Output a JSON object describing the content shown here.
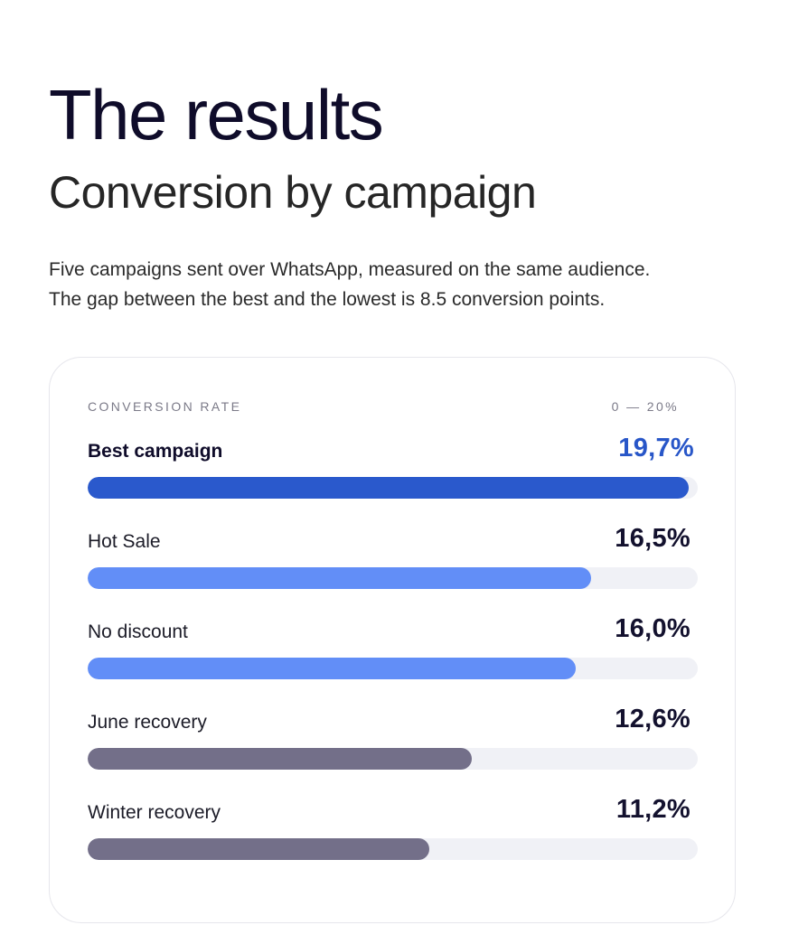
{
  "title": "The results",
  "subtitle": "Conversion by campaign",
  "intro": {
    "line1": "Five campaigns sent over WhatsApp, measured on the same audience.",
    "line2": "The gap between the best and the lowest is 8.5 conversion points."
  },
  "card": {
    "metric_label": "CONVERSION RATE",
    "range_label": "0 — 20%"
  },
  "colors": {
    "best": "#2a59cc",
    "mid": "#628ef7",
    "low": "#736f89",
    "track": "#f0f1f6"
  },
  "chart_data": {
    "type": "bar",
    "orientation": "horizontal",
    "xlim": [
      0,
      20
    ],
    "categories": [
      "Best campaign",
      "Hot Sale",
      "No discount",
      "June recovery",
      "Winter recovery"
    ],
    "values": [
      19.7,
      16.5,
      16.0,
      12.6,
      11.2
    ],
    "value_labels": [
      "19,7%",
      "16,5%",
      "16,0%",
      "12,6%",
      "11,2%"
    ],
    "bar_colors": [
      "#2a59cc",
      "#628ef7",
      "#628ef7",
      "#736f89",
      "#736f89"
    ]
  }
}
